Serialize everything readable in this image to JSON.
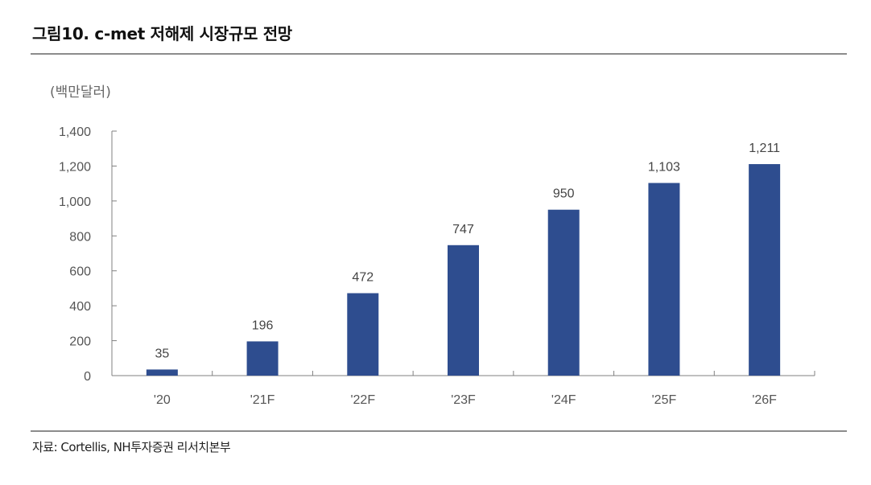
{
  "header": {
    "title": "그림10. c-met 저해제 시장규모 전망"
  },
  "chart": {
    "unit_label": "(백만달러)",
    "bar_color": "#2e4d8f",
    "axis_color": "#808080",
    "label_color": "#555555"
  },
  "footer": {
    "source": "자료: Cortellis, NH투자증권 리서치본부"
  },
  "chart_data": {
    "type": "bar",
    "title": "그림10. c-met 저해제 시장규모 전망",
    "xlabel": "",
    "ylabel": "(백만달러)",
    "categories": [
      "'20",
      "'21F",
      "'22F",
      "'23F",
      "'24F",
      "'25F",
      "'26F"
    ],
    "values": [
      35,
      196,
      472,
      747,
      950,
      1103,
      1211
    ],
    "value_labels": [
      "35",
      "196",
      "472",
      "747",
      "950",
      "1,103",
      "1,211"
    ],
    "ylim": [
      0,
      1400
    ],
    "yticks": [
      0,
      200,
      400,
      600,
      800,
      1000,
      1200,
      1400
    ],
    "ytick_labels": [
      "0",
      "200",
      "400",
      "600",
      "800",
      "1,000",
      "1,200",
      "1,400"
    ],
    "grid": false,
    "legend": null,
    "source": "자료: Cortellis, NH투자증권 리서치본부"
  }
}
